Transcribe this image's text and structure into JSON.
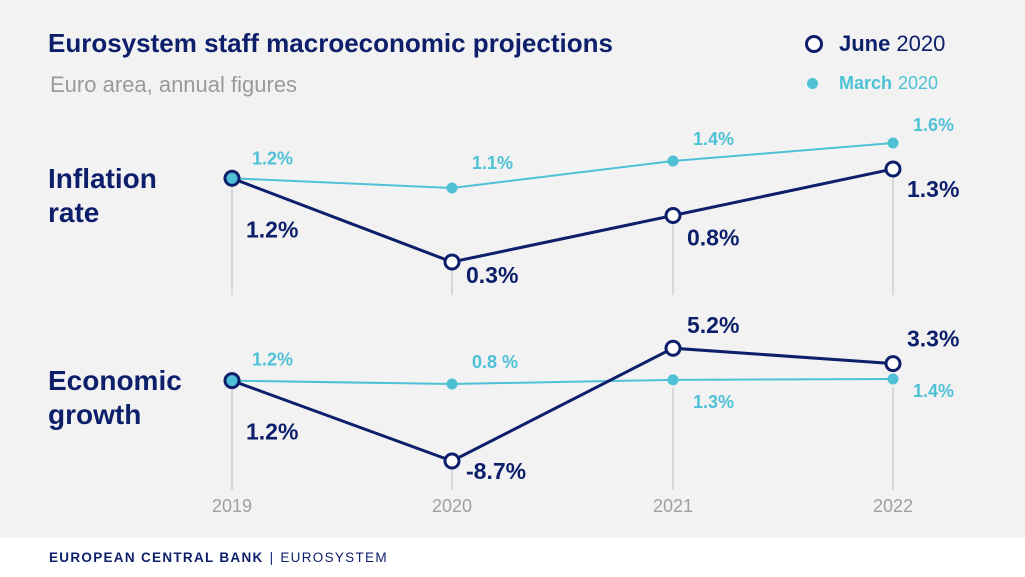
{
  "title": "Eurosystem staff macroeconomic projections",
  "subtitle": "Euro area, annual figures",
  "legend": {
    "june": {
      "bold": "June",
      "rest": "2020"
    },
    "march": {
      "bold": "March",
      "rest": "2020"
    }
  },
  "panels": {
    "inflation": {
      "line1": "Inflation",
      "line2": "rate"
    },
    "growth": {
      "line1": "Economic",
      "line2": "growth"
    }
  },
  "footer": {
    "bank": "EUROPEAN CENTRAL BANK",
    "separator": "|",
    "system": "EUROSYSTEM"
  },
  "colors": {
    "june": "#0d1f6b",
    "march": "#4ec1d6",
    "axis": "#bdbdbd",
    "tick": "#a0a0a0",
    "background": "#f2f2f2"
  },
  "chart_data": [
    {
      "type": "line",
      "title": "Inflation rate",
      "categories": [
        "2019",
        "2020",
        "2021",
        "2022"
      ],
      "series": [
        {
          "name": "June 2020",
          "values": [
            1.2,
            0.3,
            0.8,
            1.3
          ],
          "labels": [
            "1.2%",
            "0.3%",
            "0.8%",
            "1.3%"
          ]
        },
        {
          "name": "March 2020",
          "values": [
            1.2,
            1.1,
            1.4,
            1.6
          ],
          "labels": [
            "1.2%",
            "1.1%",
            "1.4%",
            "1.6%"
          ]
        }
      ]
    },
    {
      "type": "line",
      "title": "Economic growth",
      "categories": [
        "2019",
        "2020",
        "2021",
        "2022"
      ],
      "series": [
        {
          "name": "June 2020",
          "values": [
            1.2,
            -8.7,
            5.2,
            3.3
          ],
          "labels": [
            "1.2%",
            "-8.7%",
            "5.2%",
            "3.3%"
          ]
        },
        {
          "name": "March 2020",
          "values": [
            1.2,
            0.8,
            1.3,
            1.4
          ],
          "labels": [
            "1.2%",
            "0.8 %",
            "1.3%",
            "1.4%"
          ]
        }
      ]
    }
  ]
}
